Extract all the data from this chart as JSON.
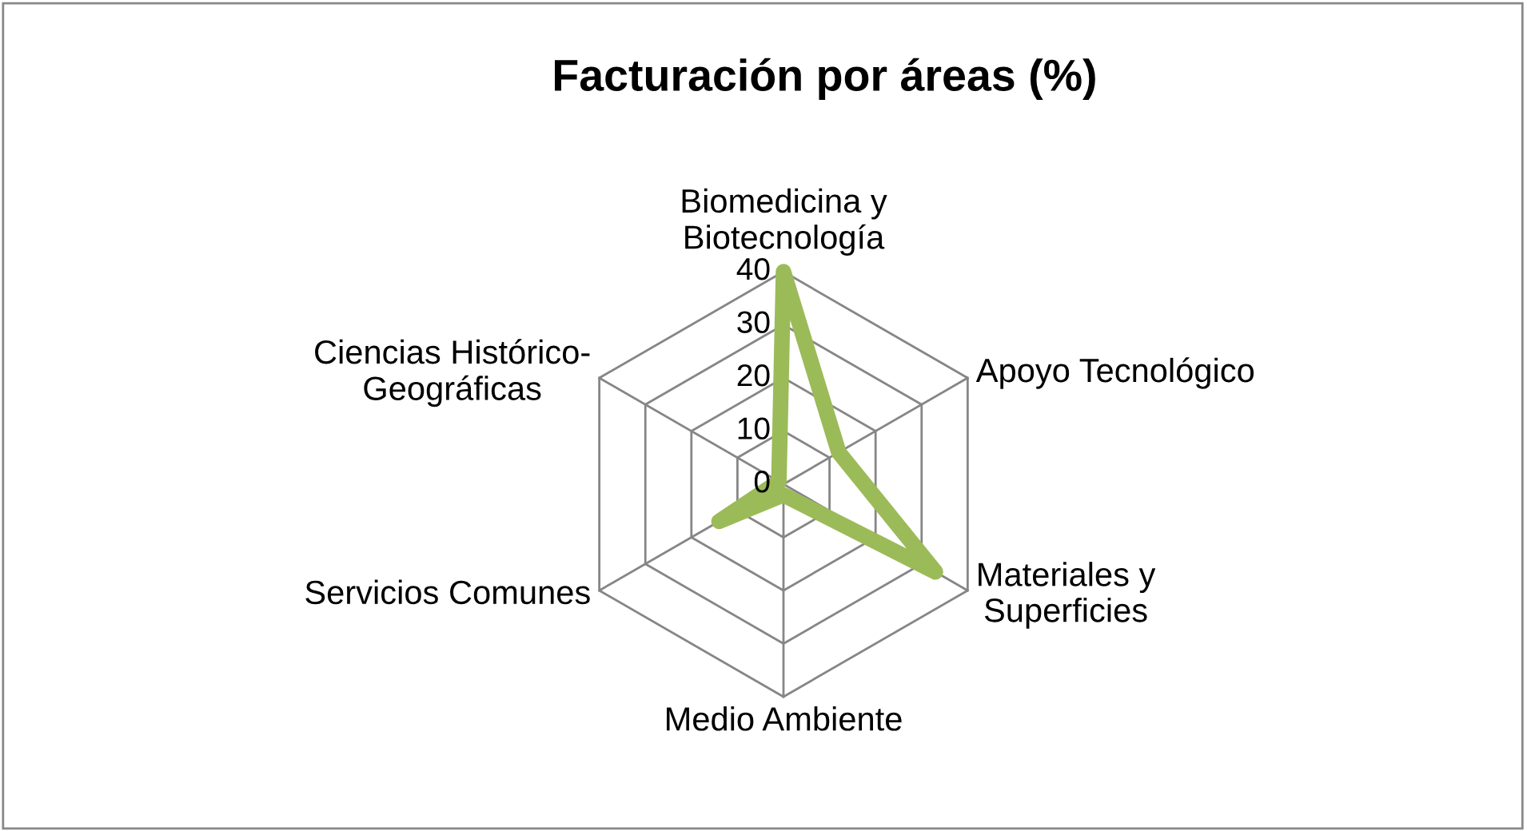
{
  "chart_data": {
    "type": "radar",
    "title": "Facturación por áreas (%)",
    "categories": [
      "Biomedicina y Biotecnología",
      "Apoyo Tecnológico",
      "Materiales y Superficies",
      "Medio Ambiente",
      "Servicios Comunes",
      "Ciencias Histórico-Geográficas"
    ],
    "series": [
      {
        "color": "#9bbb59",
        "values": [
          40,
          12,
          33,
          2,
          14,
          1
        ]
      }
    ],
    "ylim": [
      0,
      40
    ],
    "yticks": [
      0,
      10,
      20,
      30,
      40
    ],
    "grid": true
  }
}
